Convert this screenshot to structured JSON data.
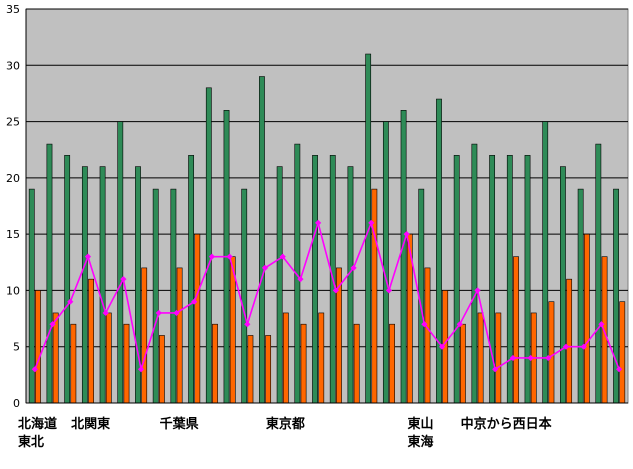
{
  "chart_data": {
    "type": "bar",
    "ylim": [
      0,
      35
    ],
    "y_ticks": [
      "0",
      "5",
      "10",
      "15",
      "20",
      "25",
      "30",
      "35"
    ],
    "grid": true,
    "plot_background": "#c0c0c0",
    "series": [
      {
        "type": "bar",
        "color": "#2e8b57",
        "values": [
          19,
          23,
          22,
          21,
          21,
          25,
          21,
          19,
          19,
          22,
          28,
          26,
          19,
          29,
          21,
          23,
          22,
          22,
          21,
          31,
          25,
          26,
          19,
          27,
          22,
          23,
          22,
          22,
          22,
          25,
          21,
          19,
          23,
          19
        ]
      },
      {
        "type": "bar",
        "color": "#ff6600",
        "values": [
          10,
          8,
          7,
          11,
          8,
          7,
          12,
          6,
          12,
          15,
          7,
          13,
          6,
          6,
          8,
          7,
          8,
          12,
          7,
          19,
          7,
          15,
          12,
          10,
          7,
          8,
          8,
          13,
          8,
          9,
          11,
          15,
          13,
          9
        ]
      },
      {
        "type": "line",
        "color": "#ff00ff",
        "values": [
          3,
          7,
          9,
          13,
          8,
          11,
          3,
          8,
          8,
          9,
          13,
          13,
          7,
          12,
          13,
          11,
          16,
          10,
          12,
          16,
          10,
          15,
          7,
          5,
          7,
          10,
          3,
          4,
          4,
          4,
          5,
          5,
          7,
          3
        ]
      }
    ],
    "region_labels": [
      {
        "lines": [
          "北海道",
          "東北"
        ],
        "category": 0
      },
      {
        "lines": [
          "北関東"
        ],
        "category": 3
      },
      {
        "lines": [
          "千葉県"
        ],
        "category": 8
      },
      {
        "lines": [
          "東京都"
        ],
        "category": 14
      },
      {
        "lines": [
          "東山",
          "東海"
        ],
        "category": 22
      },
      {
        "lines": [
          "中京から西日本"
        ],
        "category": 25
      }
    ]
  }
}
